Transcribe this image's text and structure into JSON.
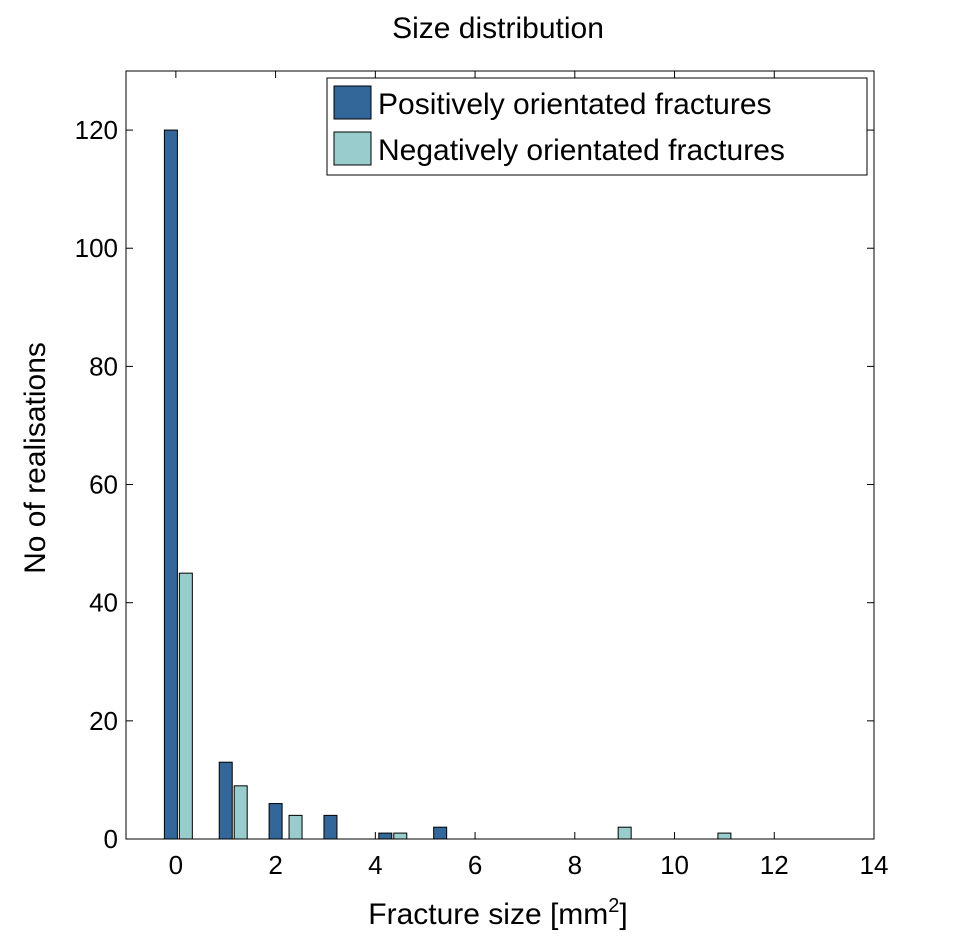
{
  "chart_data": {
    "type": "bar",
    "title": "Size distribution",
    "xlabel": "Fracture size [mm",
    "xlabel_sup": "2",
    "xlabel_end": "]",
    "ylabel": "No of realisations",
    "xlim": [
      -1,
      14
    ],
    "ylim": [
      0,
      130
    ],
    "xticks": [
      0,
      2,
      4,
      6,
      8,
      10,
      12,
      14
    ],
    "yticks": [
      0,
      20,
      40,
      60,
      80,
      100,
      120
    ],
    "grid": false,
    "legend_position": "top-right",
    "series": [
      {
        "name": "Positively orientated fractures",
        "color": "#336699",
        "x": [
          -0.1,
          1.0,
          2.0,
          3.1,
          4.2,
          5.3
        ],
        "values": [
          120,
          13,
          6,
          4,
          1,
          2
        ]
      },
      {
        "name": "Negatively orientated fractures",
        "color": "#99cccc",
        "x": [
          0.2,
          1.3,
          2.4,
          4.5,
          9.0,
          11.0
        ],
        "values": [
          45,
          9,
          4,
          1,
          2,
          1
        ]
      }
    ]
  }
}
